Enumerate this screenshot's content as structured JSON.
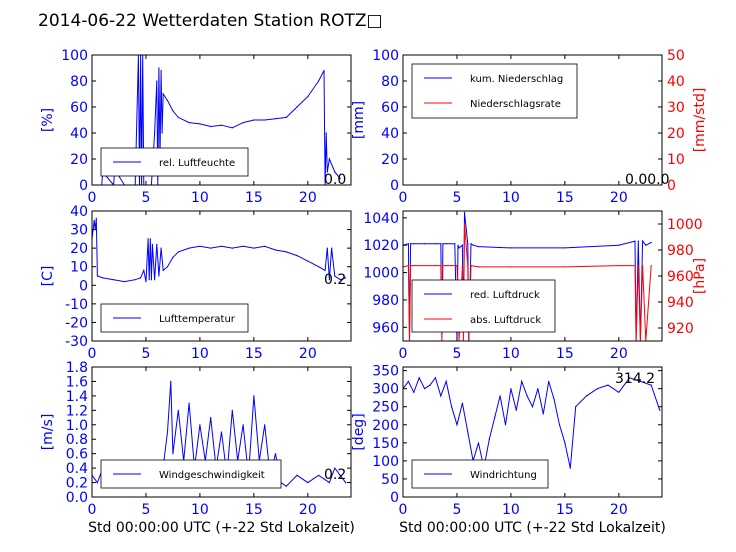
{
  "title": "2014-06-22 Wetterdaten Station ROTZ□",
  "colors": {
    "blue": "#0000ff",
    "red": "#ff0000",
    "lightblue": "#8080ff"
  },
  "chart_data": [
    {
      "type": "line",
      "ylabel": "[%]",
      "xlim": [
        0,
        24
      ],
      "ylim": [
        0,
        100
      ],
      "xticks": [
        0,
        5,
        10,
        15,
        20
      ],
      "yticks": [
        0,
        20,
        40,
        60,
        80,
        100
      ],
      "legend": [
        "rel. Luftfeuchte"
      ],
      "legend_position": "lower-left",
      "annotation": "0.0",
      "series": [
        {
          "name": "rel. Luftfeuchte",
          "color": "#0000ff",
          "x": [
            0,
            0.9,
            1,
            2,
            2.1,
            3,
            4,
            4.3,
            4.4,
            4.5,
            4.6,
            4.7,
            4.8,
            5,
            5.5,
            5.8,
            6,
            6.1,
            6.2,
            6.3,
            6.4,
            6.5,
            6.6,
            7,
            7.5,
            8,
            9,
            10,
            11,
            12,
            13,
            14,
            15,
            16,
            17,
            18,
            19,
            20,
            21,
            21.5,
            21.6,
            21.7,
            21.8,
            22,
            22.5,
            23
          ],
          "y": [
            0,
            0,
            10,
            0,
            12,
            0,
            0,
            100,
            0,
            100,
            0,
            100,
            0,
            0,
            0,
            40,
            80,
            0,
            90,
            20,
            88,
            40,
            70,
            65,
            57,
            52,
            48,
            47,
            45,
            46,
            44,
            48,
            50,
            50,
            51,
            52,
            60,
            68,
            80,
            88,
            0,
            40,
            10,
            20,
            10,
            5
          ]
        }
      ]
    },
    {
      "type": "line",
      "ylabel": "[mm]",
      "ylabel_right": "[mm/std]",
      "xlim": [
        0,
        24
      ],
      "ylim": [
        0,
        100
      ],
      "ylim_right": [
        0,
        50
      ],
      "xticks": [
        0,
        5,
        10,
        15,
        20
      ],
      "yticks": [
        0,
        20,
        40,
        60,
        80,
        100
      ],
      "yticks_right": [
        0,
        10,
        20,
        30,
        40,
        50
      ],
      "legend": [
        "kum. Niederschlag",
        "Niederschlagsrate"
      ],
      "legend_position": "upper-left",
      "annotation": "0.00.0",
      "series": [
        {
          "name": "kum. Niederschlag",
          "color": "#0000ff",
          "x": [
            0,
            24
          ],
          "y": [
            0,
            0
          ]
        },
        {
          "name": "Niederschlagsrate",
          "color": "#ff0000",
          "x": [
            0,
            24
          ],
          "y": [
            0,
            0
          ],
          "axis": "right"
        }
      ]
    },
    {
      "type": "line",
      "ylabel": "[C]",
      "xlim": [
        0,
        24
      ],
      "ylim": [
        -30,
        40
      ],
      "xticks": [
        0,
        5,
        10,
        15,
        20
      ],
      "yticks": [
        -30,
        -20,
        -10,
        0,
        10,
        20,
        30,
        40
      ],
      "legend": [
        "Lufttemperatur"
      ],
      "legend_position": "lower-left",
      "annotation": "0.2",
      "series": [
        {
          "name": "Lufttemperatur",
          "color": "#0000ff",
          "x": [
            0,
            0.2,
            0.3,
            0.4,
            0.5,
            1,
            2,
            3,
            4,
            4.5,
            4.8,
            5,
            5.2,
            5.3,
            5.4,
            5.5,
            5.6,
            5.8,
            6,
            6.2,
            6.4,
            6.6,
            7,
            7.5,
            8,
            9,
            10,
            11,
            12,
            13,
            14,
            15,
            16,
            17,
            18,
            19,
            20,
            21,
            21.6,
            21.8,
            22,
            22.2,
            22.5,
            23,
            23.5
          ],
          "y": [
            25,
            35,
            30,
            36,
            5,
            4,
            3,
            2,
            3,
            4,
            8,
            2,
            25,
            3,
            25,
            3,
            22,
            3,
            22,
            5,
            20,
            8,
            10,
            15,
            18,
            20,
            21,
            20,
            21,
            20,
            21,
            20,
            21,
            19,
            18,
            16,
            13,
            10,
            8,
            20,
            3,
            20,
            5,
            3,
            4
          ]
        }
      ]
    },
    {
      "type": "line",
      "ylabel_right": "[hPa]",
      "xlim": [
        0,
        24
      ],
      "ylim": [
        950,
        1045
      ],
      "ylim_right": [
        910,
        1010
      ],
      "xticks": [
        0,
        5,
        10,
        15,
        20
      ],
      "yticks": [
        960,
        980,
        1000,
        1020,
        1040
      ],
      "yticks_right": [
        920,
        940,
        960,
        980,
        1000
      ],
      "legend": [
        "red. Luftdruck",
        "abs. Luftdruck"
      ],
      "legend_position": "lower-left",
      "series": [
        {
          "name": "red. Luftdruck",
          "color": "#0000ff",
          "x": [
            0,
            0.5,
            0.6,
            0.7,
            1,
            2,
            3,
            3.5,
            3.6,
            3.7,
            4,
            4.8,
            5,
            5.1,
            5.2,
            5.5,
            5.6,
            5.7,
            6,
            6.1,
            6.3,
            6.5,
            7,
            10,
            15,
            20,
            21.5,
            21.6,
            21.8,
            22,
            22.2,
            22.5,
            23
          ],
          "y": [
            1020,
            1021,
            950,
            1021,
            1021,
            1021,
            1021,
            1021,
            958,
            1021,
            1021,
            1021,
            950,
            1020,
            1018,
            1020,
            960,
            1044,
            1021,
            950,
            1021,
            1020,
            1019,
            1018,
            1018,
            1020,
            1023,
            950,
            1023,
            950,
            1023,
            1020,
            1022
          ]
        },
        {
          "name": "abs. Luftdruck",
          "color": "#ff0000",
          "axis": "right",
          "x": [
            0,
            0.5,
            0.6,
            0.7,
            1,
            3,
            3.5,
            3.6,
            3.7,
            4,
            5,
            5.2,
            5.5,
            5.6,
            5.7,
            6,
            6.1,
            6.3,
            7,
            10,
            15,
            20,
            21.5,
            21.6,
            21.8,
            22,
            22.2,
            22.5,
            23
          ],
          "y": [
            967,
            968,
            910,
            968,
            968,
            968,
            968,
            910,
            968,
            968,
            968,
            910,
            968,
            910,
            1000,
            968,
            910,
            968,
            967,
            967,
            967,
            968,
            968,
            910,
            968,
            910,
            968,
            910,
            968
          ]
        }
      ]
    },
    {
      "type": "line",
      "ylabel": "[m/s]",
      "xlabel": "Std 00:00:00 UTC (+-22 Std Lokalzeit)",
      "xlim": [
        0,
        24
      ],
      "ylim": [
        0,
        1.8
      ],
      "xticks": [
        0,
        5,
        10,
        15,
        20
      ],
      "yticks": [
        0.0,
        0.2,
        0.4,
        0.6,
        0.8,
        1.0,
        1.2,
        1.4,
        1.6,
        1.8
      ],
      "legend": [
        "Windgeschwindigkeit"
      ],
      "legend_position": "lower-left",
      "annotation": "0.2",
      "series": [
        {
          "name": "Windgeschwindigkeit",
          "color": "#0000ff",
          "x": [
            0,
            0.5,
            1,
            1.5,
            2,
            2.5,
            3,
            3.5,
            4,
            4.5,
            5,
            5.5,
            6,
            6.5,
            7,
            7.3,
            7.5,
            8,
            8.5,
            9,
            9.5,
            10,
            10.5,
            11,
            11.5,
            12,
            12.5,
            13,
            13.5,
            14,
            14.5,
            15,
            15.5,
            16,
            16.5,
            17,
            17.5,
            18,
            19,
            20,
            21,
            22,
            22.5,
            23,
            23.5
          ],
          "y": [
            0.3,
            0.2,
            0.4,
            0.2,
            0.5,
            0.3,
            0.2,
            0.4,
            0.3,
            0.2,
            0.4,
            0.2,
            0.5,
            0.3,
            0.9,
            1.6,
            0.6,
            1.2,
            0.5,
            1.3,
            0.4,
            1.0,
            0.5,
            1.1,
            0.4,
            0.9,
            0.3,
            1.2,
            0.5,
            1.0,
            0.3,
            1.4,
            0.5,
            1.0,
            0.3,
            0.6,
            0.2,
            0.15,
            0.3,
            0.2,
            0.3,
            0.2,
            0.4,
            0.3,
            0.2
          ]
        }
      ]
    },
    {
      "type": "line",
      "ylabel": "[deg]",
      "xlabel": "Std 00:00:00 UTC (+-22 Std Lokalzeit)",
      "xlim": [
        0,
        24
      ],
      "ylim": [
        0,
        360
      ],
      "xticks": [
        0,
        5,
        10,
        15,
        20
      ],
      "yticks": [
        0,
        50,
        100,
        150,
        200,
        250,
        300,
        350
      ],
      "legend": [
        "Windrichtung"
      ],
      "legend_position": "lower-left",
      "annotation": "314.2",
      "series": [
        {
          "name": "Windrichtung",
          "color": "#0000ff",
          "x": [
            0,
            0.5,
            1,
            1.5,
            2,
            2.5,
            3,
            3.5,
            4,
            4.5,
            5,
            5.5,
            6,
            6.5,
            7,
            7.5,
            8,
            8.5,
            9,
            9.5,
            10,
            10.5,
            11,
            11.5,
            12,
            12.5,
            13,
            13.5,
            14,
            14.5,
            15,
            15.5,
            16,
            17,
            18,
            19,
            20,
            21,
            22,
            23,
            23.8
          ],
          "y": [
            300,
            320,
            290,
            330,
            300,
            310,
            330,
            280,
            320,
            250,
            200,
            260,
            180,
            100,
            150,
            80,
            160,
            220,
            280,
            200,
            300,
            240,
            320,
            280,
            250,
            300,
            230,
            320,
            270,
            200,
            150,
            80,
            250,
            280,
            300,
            310,
            290,
            330,
            320,
            310,
            240
          ]
        }
      ]
    }
  ]
}
